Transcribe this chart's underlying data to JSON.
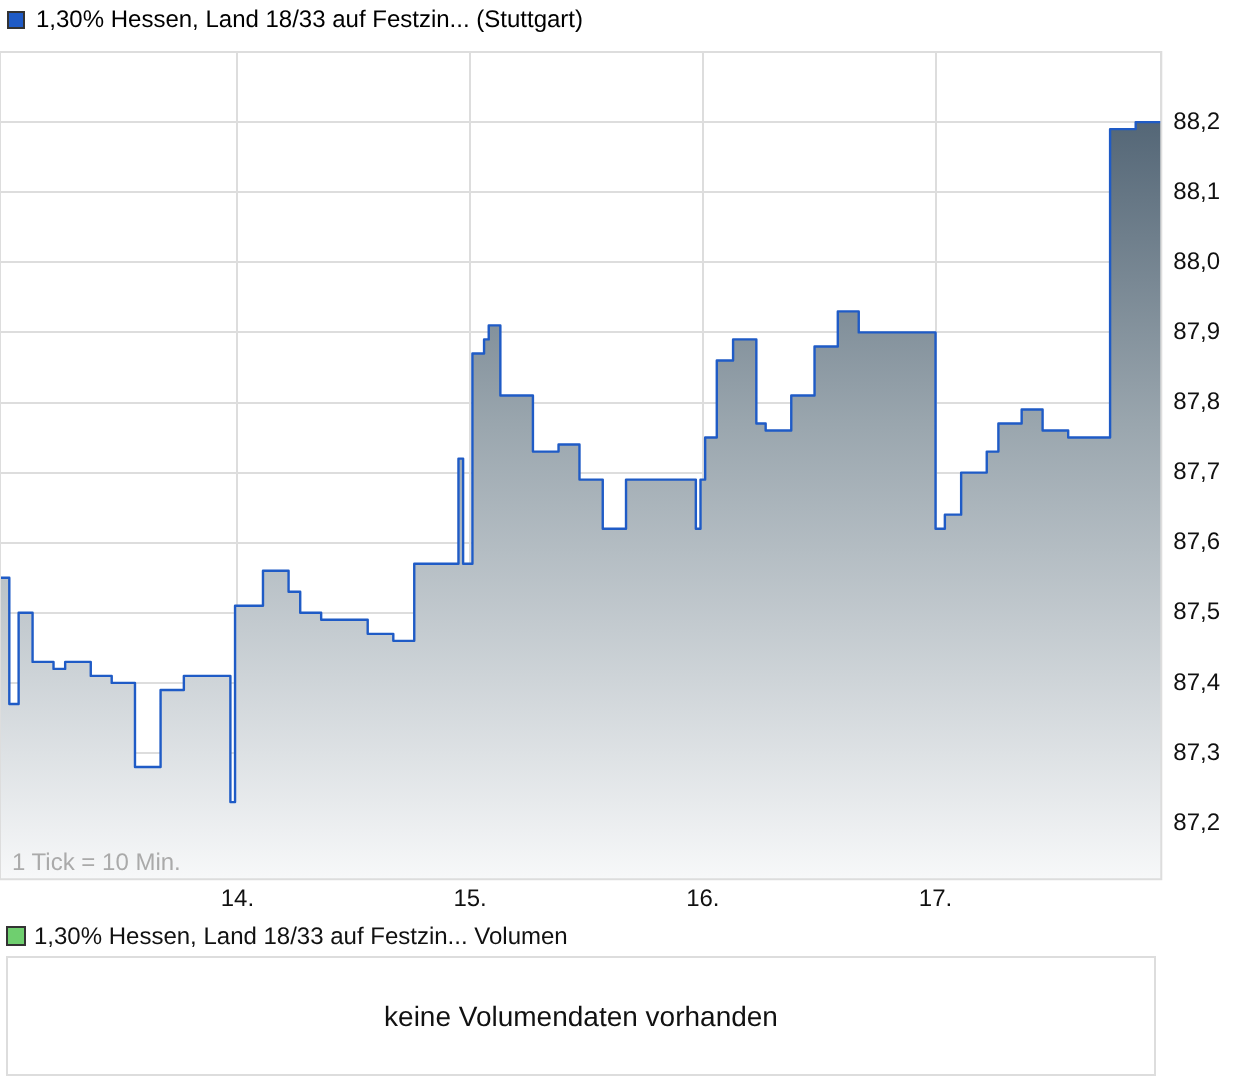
{
  "chart_data": [
    {
      "type": "area",
      "x": [
        12.98,
        13.02,
        13.02,
        13.06,
        13.06,
        13.12,
        13.12,
        13.21,
        13.21,
        13.26,
        13.26,
        13.37,
        13.37,
        13.46,
        13.46,
        13.56,
        13.56,
        13.67,
        13.67,
        13.77,
        13.77,
        13.97,
        13.97,
        13.99,
        13.99,
        14.11,
        14.11,
        14.22,
        14.22,
        14.27,
        14.27,
        14.36,
        14.36,
        14.56,
        14.56,
        14.67,
        14.67,
        14.76,
        14.76,
        14.95,
        14.95,
        14.97,
        14.97,
        15.01,
        15.01,
        15.06,
        15.06,
        15.08,
        15.08,
        15.13,
        15.13,
        15.27,
        15.27,
        15.38,
        15.38,
        15.47,
        15.47,
        15.57,
        15.57,
        15.67,
        15.67,
        15.97,
        15.97,
        15.99,
        15.99,
        16.01,
        16.01,
        16.06,
        16.06,
        16.13,
        16.13,
        16.23,
        16.23,
        16.27,
        16.27,
        16.38,
        16.38,
        16.48,
        16.48,
        16.58,
        16.58,
        16.67,
        16.67,
        17.0,
        17.0,
        17.04,
        17.04,
        17.11,
        17.11,
        17.22,
        17.22,
        17.27,
        17.27,
        17.37,
        17.37,
        17.46,
        17.46,
        17.57,
        17.57,
        17.75,
        17.75,
        17.86,
        17.86,
        17.97
      ],
      "series": [
        {
          "name": "1,30% Hessen, Land 18/33 auf Festzin... (Stuttgart)",
          "color": "#1f5bc6",
          "values": [
            87.55,
            87.55,
            87.37,
            87.37,
            87.5,
            87.5,
            87.43,
            87.43,
            87.42,
            87.42,
            87.43,
            87.43,
            87.41,
            87.41,
            87.4,
            87.4,
            87.28,
            87.28,
            87.39,
            87.39,
            87.41,
            87.41,
            87.23,
            87.23,
            87.51,
            87.51,
            87.56,
            87.56,
            87.53,
            87.53,
            87.5,
            87.5,
            87.49,
            87.49,
            87.47,
            87.47,
            87.46,
            87.46,
            87.57,
            87.57,
            87.72,
            87.72,
            87.57,
            87.57,
            87.87,
            87.87,
            87.89,
            87.89,
            87.91,
            87.91,
            87.81,
            87.81,
            87.73,
            87.73,
            87.74,
            87.74,
            87.69,
            87.69,
            87.62,
            87.62,
            87.69,
            87.69,
            87.62,
            87.62,
            87.69,
            87.69,
            87.75,
            87.75,
            87.86,
            87.86,
            87.89,
            87.89,
            87.77,
            87.77,
            87.76,
            87.76,
            87.81,
            87.81,
            87.88,
            87.88,
            87.93,
            87.93,
            87.9,
            87.9,
            87.62,
            87.62,
            87.64,
            87.64,
            87.7,
            87.7,
            87.73,
            87.73,
            87.77,
            87.77,
            87.79,
            87.79,
            87.76,
            87.76,
            87.75,
            87.75,
            88.19,
            88.19,
            88.2,
            88.2
          ]
        }
      ],
      "xlim": [
        12.98,
        17.97
      ],
      "xticks": [
        {
          "value": 14,
          "label": "14."
        },
        {
          "value": 15,
          "label": "15."
        },
        {
          "value": 16,
          "label": "16."
        },
        {
          "value": 17,
          "label": "17."
        }
      ],
      "ylim": [
        87.12,
        88.3
      ],
      "yticks": [
        {
          "value": 87.2,
          "label": "87,2"
        },
        {
          "value": 87.3,
          "label": "87,3"
        },
        {
          "value": 87.4,
          "label": "87,4"
        },
        {
          "value": 87.5,
          "label": "87,5"
        },
        {
          "value": 87.6,
          "label": "87,6"
        },
        {
          "value": 87.7,
          "label": "87,7"
        },
        {
          "value": 87.8,
          "label": "87,8"
        },
        {
          "value": 87.9,
          "label": "87,9"
        },
        {
          "value": 88.0,
          "label": "88,0"
        },
        {
          "value": 88.1,
          "label": "88,1"
        },
        {
          "value": 88.2,
          "label": "88,2"
        }
      ],
      "grid": true,
      "legend": "top left",
      "line_style": "solid",
      "marker": "none",
      "annotations": [
        "1 Tick = 10 Min."
      ]
    },
    {
      "type": "other",
      "title": "1,30% Hessen, Land 18/33 auf Festzin... Volumen",
      "annotations": [
        "keine Volumendaten vorhanden"
      ]
    }
  ]
}
